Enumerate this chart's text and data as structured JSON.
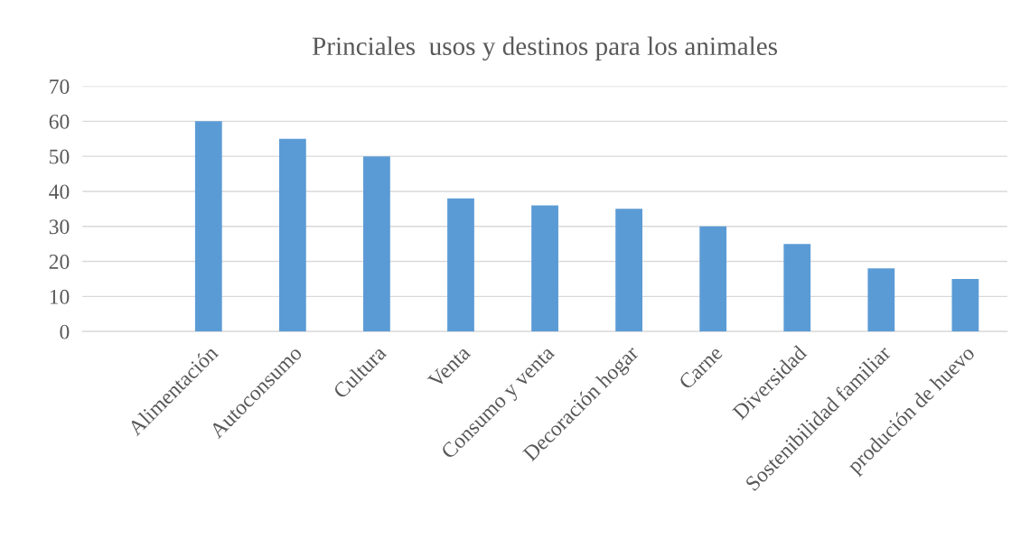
{
  "chart_data": {
    "type": "bar",
    "title": "Princiales  usos y destinos para los animales",
    "categories": [
      null,
      "Alimentación",
      "Autoconsumo",
      "Cultura",
      "Venta",
      "Consumo y venta",
      "Decoración hogar",
      "Carne",
      "Diversidad",
      "Sostenibilidad familiar",
      "produción de huevo"
    ],
    "values": [
      null,
      60,
      55,
      50,
      38,
      36,
      35,
      30,
      25,
      18,
      15
    ],
    "color": "#5b9bd5",
    "ylim": [
      0,
      70
    ],
    "yticks": [
      0,
      10,
      20,
      30,
      40,
      50,
      60,
      70
    ],
    "grid": "y",
    "legend": false
  }
}
